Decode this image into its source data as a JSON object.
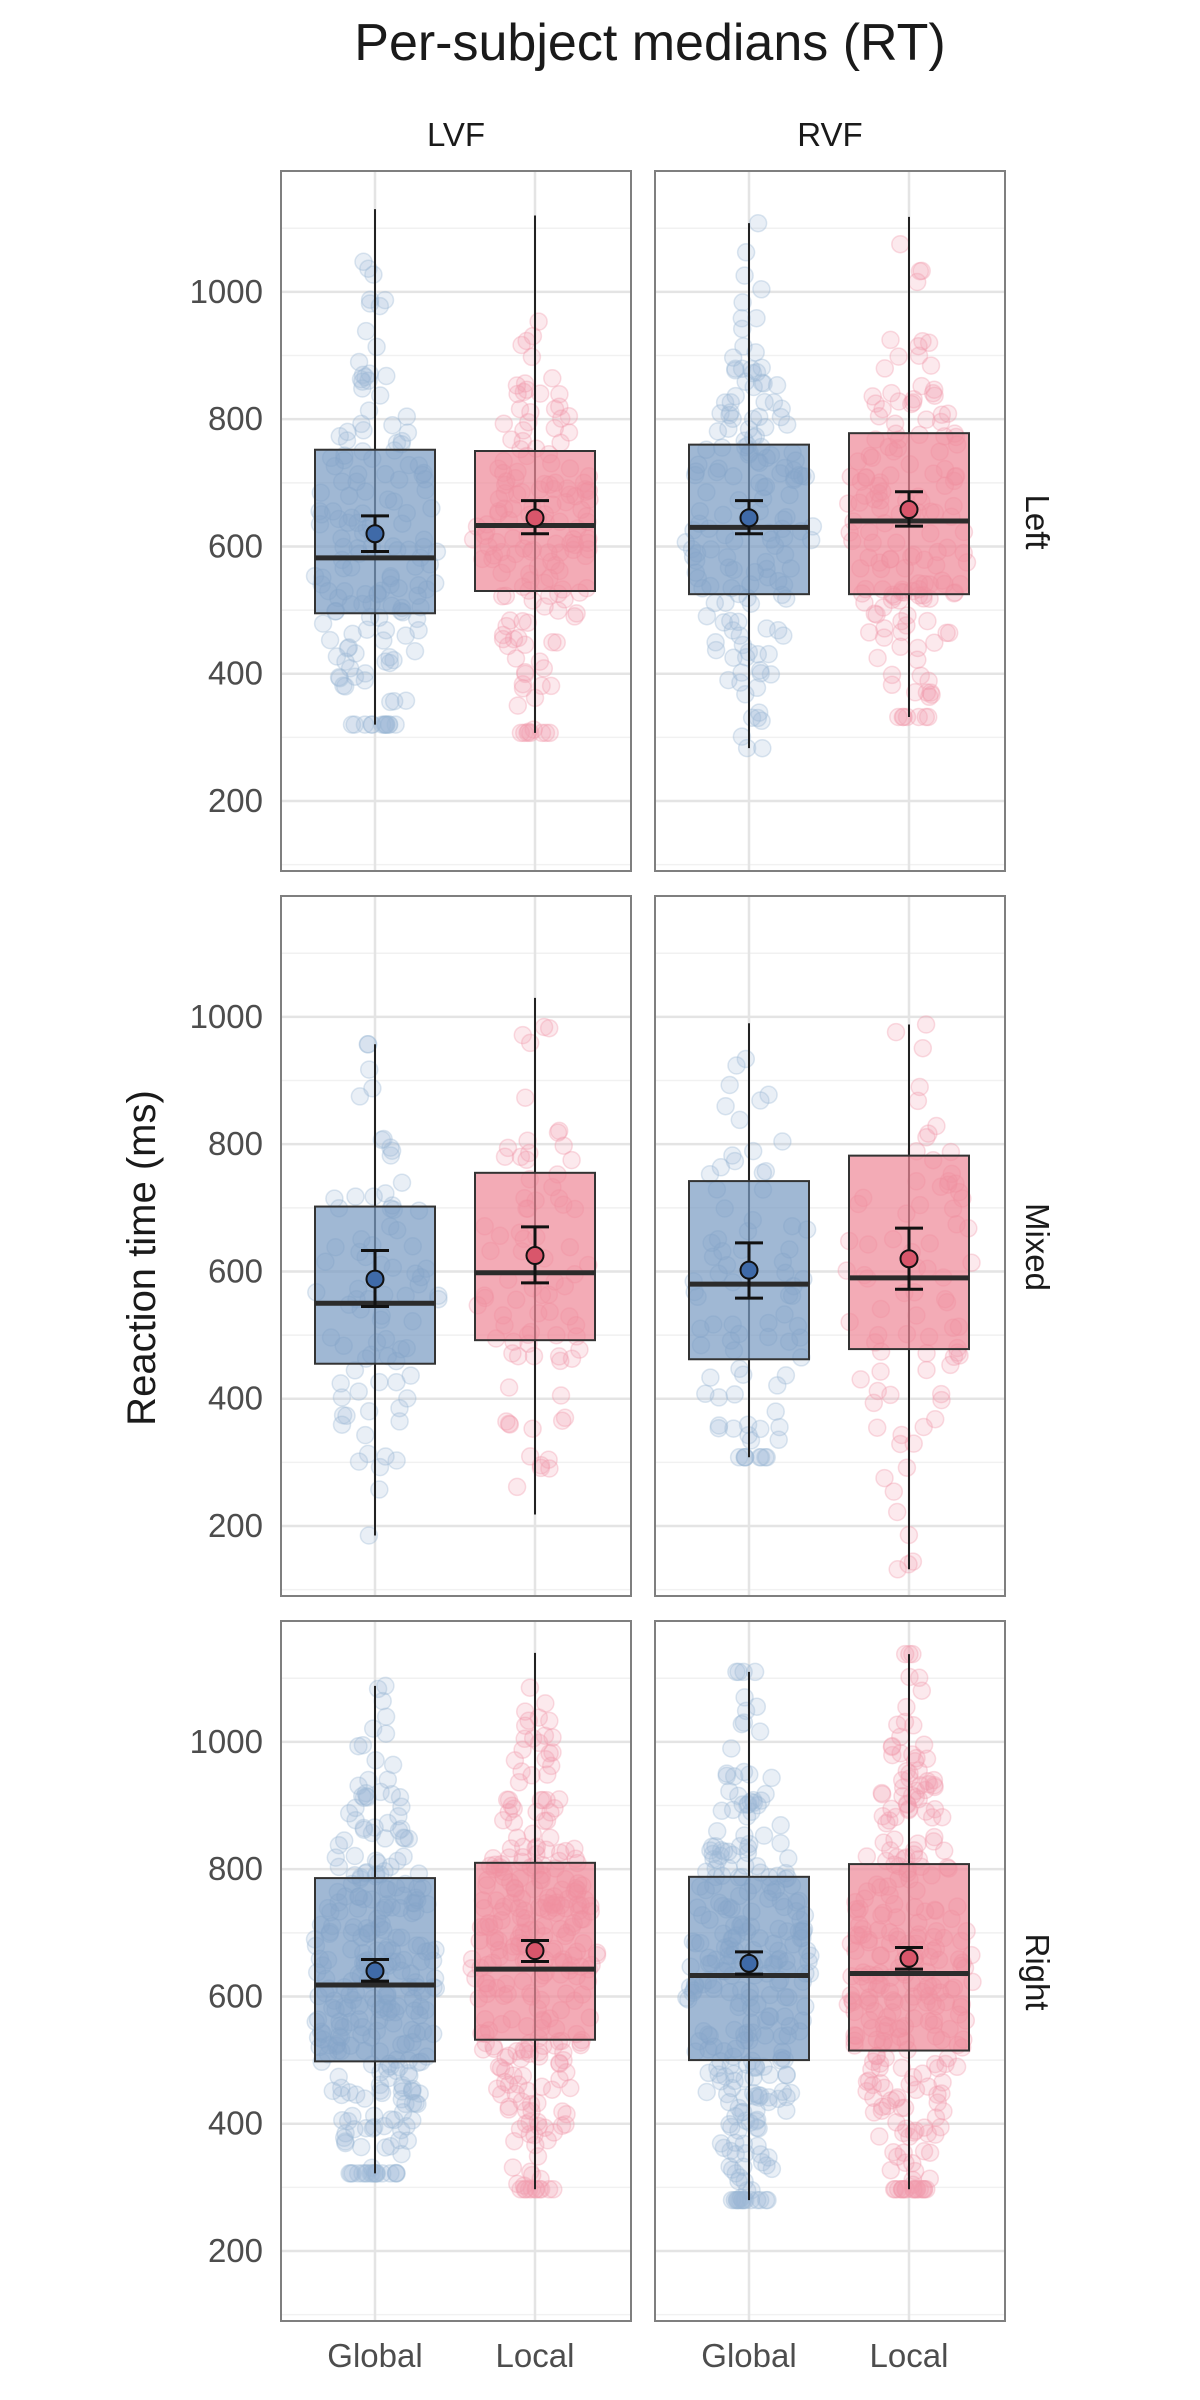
{
  "chart_data": {
    "type": "box",
    "title": "Per-subject medians (RT)",
    "xlabel": "",
    "ylabel": "Reaction time (ms)",
    "ylim": [
      90,
      1190
    ],
    "yticks": [
      200,
      400,
      600,
      800,
      1000
    ],
    "grid": true,
    "legend": "none",
    "categories": [
      "Global",
      "Local"
    ],
    "columns": [
      "LVF",
      "RVF"
    ],
    "rows": [
      "Left",
      "Mixed",
      "Right"
    ],
    "colors": {
      "Global_fill": "#7c9cc4",
      "Global_point": "#9bb7d4",
      "Global_mean": "#3f6aa8",
      "Local_fill": "#ee8b9a",
      "Local_point": "#f29aab",
      "Local_mean": "#d9566b"
    },
    "panels": [
      {
        "row": "Left",
        "col": "LVF",
        "boxes": [
          {
            "group": "Global",
            "q1": 495,
            "median": 582,
            "q3": 752,
            "whisker_low": 320,
            "whisker_high": 1130,
            "mean": 620,
            "ci_low": 592,
            "ci_high": 648,
            "n": 160
          },
          {
            "group": "Local",
            "q1": 530,
            "median": 633,
            "q3": 750,
            "whisker_low": 307,
            "whisker_high": 1120,
            "mean": 645,
            "ci_low": 620,
            "ci_high": 672,
            "n": 160
          }
        ]
      },
      {
        "row": "Left",
        "col": "RVF",
        "boxes": [
          {
            "group": "Global",
            "q1": 525,
            "median": 630,
            "q3": 760,
            "whisker_low": 283,
            "whisker_high": 1108,
            "mean": 645,
            "ci_low": 620,
            "ci_high": 672,
            "n": 160
          },
          {
            "group": "Local",
            "q1": 525,
            "median": 640,
            "q3": 778,
            "whisker_low": 332,
            "whisker_high": 1118,
            "mean": 658,
            "ci_low": 632,
            "ci_high": 686,
            "n": 160
          }
        ]
      },
      {
        "row": "Mixed",
        "col": "LVF",
        "boxes": [
          {
            "group": "Global",
            "q1": 455,
            "median": 550,
            "q3": 702,
            "whisker_low": 185,
            "whisker_high": 957,
            "mean": 588,
            "ci_low": 545,
            "ci_high": 633,
            "n": 80
          },
          {
            "group": "Local",
            "q1": 492,
            "median": 598,
            "q3": 755,
            "whisker_low": 218,
            "whisker_high": 1030,
            "mean": 625,
            "ci_low": 582,
            "ci_high": 670,
            "n": 80
          }
        ]
      },
      {
        "row": "Mixed",
        "col": "RVF",
        "boxes": [
          {
            "group": "Global",
            "q1": 462,
            "median": 580,
            "q3": 742,
            "whisker_low": 308,
            "whisker_high": 990,
            "mean": 602,
            "ci_low": 558,
            "ci_high": 645,
            "n": 80
          },
          {
            "group": "Local",
            "q1": 478,
            "median": 590,
            "q3": 782,
            "whisker_low": 132,
            "whisker_high": 988,
            "mean": 620,
            "ci_low": 572,
            "ci_high": 668,
            "n": 80
          }
        ]
      },
      {
        "row": "Right",
        "col": "LVF",
        "boxes": [
          {
            "group": "Global",
            "q1": 498,
            "median": 618,
            "q3": 786,
            "whisker_low": 322,
            "whisker_high": 1088,
            "mean": 640,
            "ci_low": 624,
            "ci_high": 658,
            "n": 300
          },
          {
            "group": "Local",
            "q1": 532,
            "median": 643,
            "q3": 810,
            "whisker_low": 297,
            "whisker_high": 1140,
            "mean": 672,
            "ci_low": 655,
            "ci_high": 688,
            "n": 300
          }
        ]
      },
      {
        "row": "Right",
        "col": "RVF",
        "boxes": [
          {
            "group": "Global",
            "q1": 500,
            "median": 633,
            "q3": 788,
            "whisker_low": 280,
            "whisker_high": 1110,
            "mean": 652,
            "ci_low": 635,
            "ci_high": 670,
            "n": 300
          },
          {
            "group": "Local",
            "q1": 515,
            "median": 636,
            "q3": 808,
            "whisker_low": 297,
            "whisker_high": 1138,
            "mean": 660,
            "ci_low": 643,
            "ci_high": 677,
            "n": 300
          }
        ]
      }
    ]
  }
}
